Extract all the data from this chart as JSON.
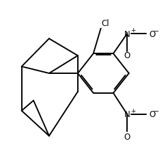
{
  "background_color": "#ffffff",
  "line_color": "#000000",
  "line_width": 1.4,
  "figsize": [
    2.46,
    2.26
  ],
  "dpi": 100,
  "xlim": [
    0,
    1
  ],
  "ylim": [
    0,
    1
  ]
}
